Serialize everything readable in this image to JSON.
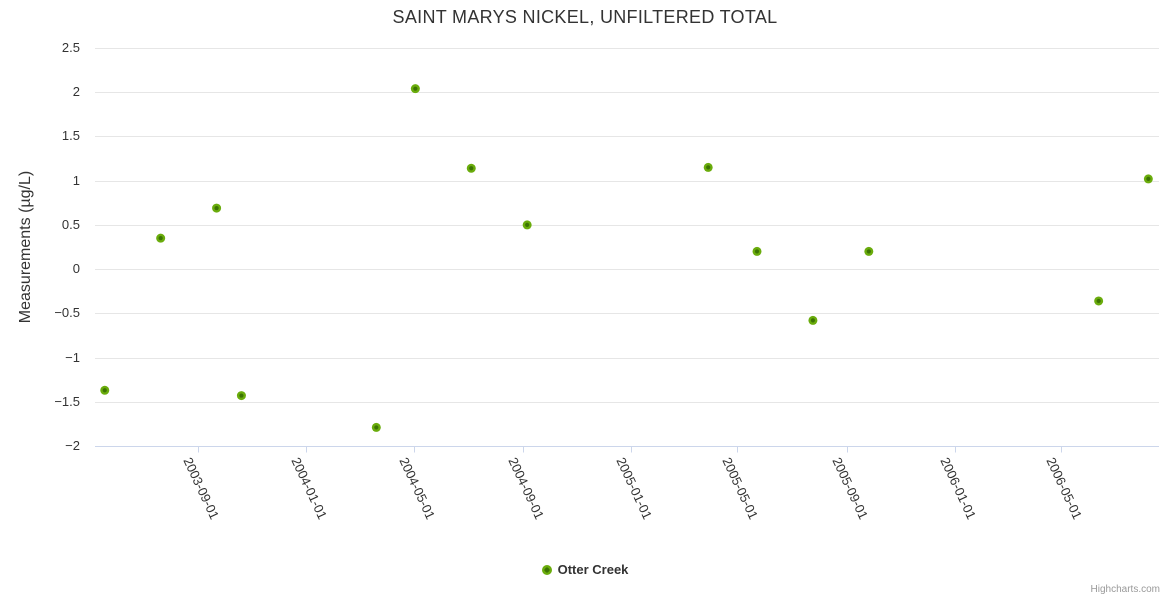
{
  "page": {
    "credit": "Highcharts.com"
  },
  "colors": {
    "grid": "#e6e6e6",
    "axis_line": "#ccd6eb",
    "text": "#333333",
    "credit_text": "#999999",
    "marker": "#6aac0c",
    "marker_center": "#3c7403"
  },
  "chart_data": {
    "type": "scatter",
    "title": "SAINT MARYS NICKEL, UNFILTERED TOTAL",
    "xlabel": "",
    "ylabel": "Measurements (µg/L)",
    "ylim": [
      -2,
      2.5
    ],
    "yticks": [
      {
        "v": 2.5,
        "label": "2.5"
      },
      {
        "v": 2,
        "label": "2"
      },
      {
        "v": 1.5,
        "label": "1.5"
      },
      {
        "v": 1,
        "label": "1"
      },
      {
        "v": 0.5,
        "label": "0.5"
      },
      {
        "v": 0,
        "label": "0"
      },
      {
        "v": -0.5,
        "label": "−0.5"
      },
      {
        "v": -1,
        "label": "−1"
      },
      {
        "v": -1.5,
        "label": "−1.5"
      },
      {
        "v": -2,
        "label": "−2"
      }
    ],
    "xlim": [
      "2003-05-08",
      "2006-08-19"
    ],
    "xticks": [
      "2003-09-01",
      "2004-01-01",
      "2004-05-01",
      "2004-09-01",
      "2005-01-01",
      "2005-05-01",
      "2005-09-01",
      "2006-01-01",
      "2006-05-01"
    ],
    "grid": true,
    "legend_position": "bottom",
    "series": [
      {
        "name": "Otter Creek",
        "data": [
          {
            "x": "2003-05-19",
            "y": -1.37
          },
          {
            "x": "2003-07-21",
            "y": 0.35
          },
          {
            "x": "2003-09-22",
            "y": 0.69
          },
          {
            "x": "2003-10-20",
            "y": -1.43
          },
          {
            "x": "2004-03-20",
            "y": -1.79
          },
          {
            "x": "2004-05-03",
            "y": 2.04
          },
          {
            "x": "2004-07-05",
            "y": 1.14
          },
          {
            "x": "2004-09-06",
            "y": 0.5
          },
          {
            "x": "2005-03-29",
            "y": 1.15
          },
          {
            "x": "2005-05-23",
            "y": 0.2
          },
          {
            "x": "2005-07-25",
            "y": -0.58
          },
          {
            "x": "2005-09-26",
            "y": 0.2
          },
          {
            "x": "2006-06-12",
            "y": -0.36
          },
          {
            "x": "2006-08-07",
            "y": 1.02
          }
        ]
      }
    ]
  }
}
